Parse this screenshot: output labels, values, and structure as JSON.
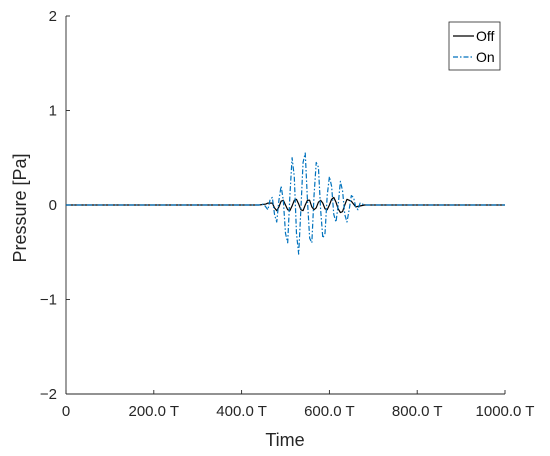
{
  "chart_data": {
    "type": "line",
    "title": "",
    "xlabel": "Time",
    "ylabel": "Pressure [Pa]",
    "xlim": [
      0,
      1000
    ],
    "ylim": [
      -2,
      2
    ],
    "x_ticks": [
      0,
      200,
      400,
      600,
      800,
      1000
    ],
    "x_tick_labels": [
      "0",
      "200.0 T",
      "400.0 T",
      "600.0 T",
      "800.0 T",
      "1000.0 T"
    ],
    "y_ticks": [
      -2,
      -1,
      0,
      1,
      2
    ],
    "y_tick_labels": [
      "−2",
      "−1",
      "0",
      "1",
      "2"
    ],
    "grid": false,
    "legend_position": "top-right",
    "series": [
      {
        "name": "Off",
        "color": "#000000",
        "dash": "solid",
        "x": [
          0,
          440,
          455,
          460,
          470,
          475,
          480,
          485,
          490,
          495,
          500,
          505,
          510,
          515,
          520,
          525,
          530,
          535,
          540,
          545,
          550,
          555,
          560,
          565,
          570,
          575,
          580,
          585,
          590,
          595,
          600,
          605,
          610,
          615,
          620,
          625,
          630,
          635,
          640,
          650,
          660,
          680,
          1000
        ],
        "y": [
          0,
          0,
          0.01,
          0.02,
          0.02,
          -0.03,
          -0.06,
          -0.02,
          0.04,
          0.05,
          0.0,
          -0.05,
          -0.06,
          -0.01,
          0.05,
          0.06,
          0.01,
          -0.05,
          -0.06,
          0.0,
          0.05,
          0.05,
          -0.02,
          -0.05,
          -0.03,
          0.03,
          0.05,
          0.02,
          -0.04,
          -0.05,
          0.0,
          0.06,
          0.08,
          0.03,
          -0.04,
          -0.08,
          -0.07,
          0.0,
          0.06,
          0.04,
          -0.02,
          0.0,
          0
        ]
      },
      {
        "name": "On",
        "color": "#0072bd",
        "dash": "dash-dot",
        "x": [
          0,
          440,
          450,
          460,
          465,
          470,
          475,
          480,
          485,
          490,
          495,
          500,
          505,
          510,
          515,
          520,
          525,
          530,
          535,
          540,
          545,
          550,
          555,
          560,
          565,
          570,
          575,
          580,
          585,
          590,
          595,
          600,
          605,
          610,
          615,
          620,
          625,
          630,
          635,
          640,
          645,
          650,
          655,
          660,
          665,
          670,
          680,
          1000
        ],
        "y": [
          0,
          0,
          0.01,
          -0.05,
          0.06,
          0.08,
          -0.1,
          -0.18,
          0.05,
          0.2,
          0.05,
          -0.3,
          -0.4,
          0.1,
          0.5,
          0.3,
          -0.3,
          -0.52,
          -0.05,
          0.45,
          0.55,
          0.05,
          -0.35,
          -0.4,
          0.1,
          0.45,
          0.4,
          -0.05,
          -0.35,
          -0.3,
          0.1,
          0.3,
          0.2,
          -0.1,
          -0.18,
          0.0,
          0.25,
          0.15,
          -0.1,
          -0.18,
          -0.05,
          0.1,
          0.08,
          -0.02,
          -0.05,
          0.02,
          0.0,
          0
        ]
      }
    ]
  }
}
